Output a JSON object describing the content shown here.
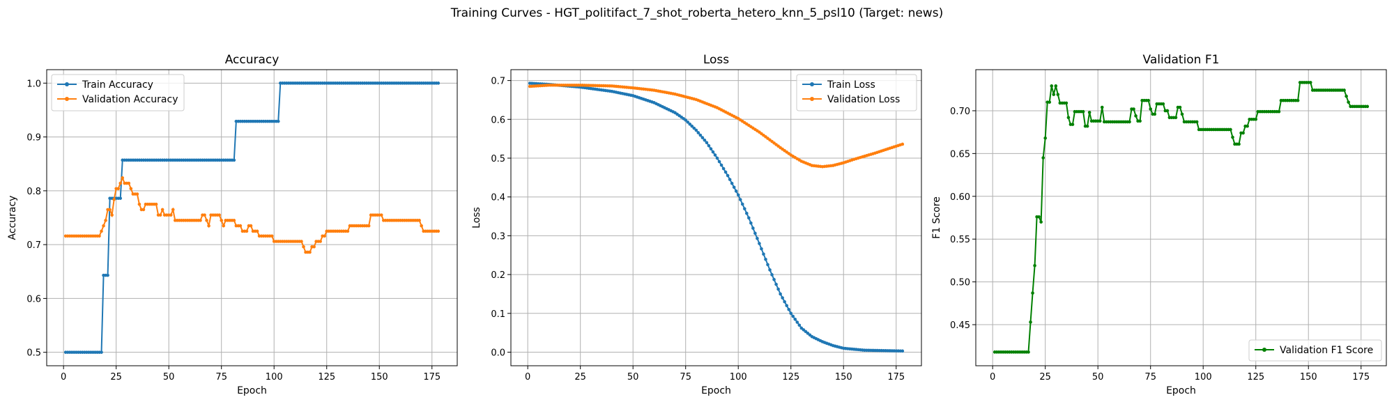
{
  "figure_title": "Training Curves - HGT_politifact_7_shot_roberta_hetero_knn_5_psl10 (Target: news)",
  "colors": {
    "blue": "#1f77b4",
    "orange": "#ff7f0e",
    "green": "#008000",
    "grid": "#b0b0b0"
  },
  "chart_data": [
    {
      "type": "line",
      "title": "Accuracy",
      "xlabel": "Epoch",
      "ylabel": "Accuracy",
      "xlim": [
        -8,
        187
      ],
      "ylim": [
        0.475,
        1.025
      ],
      "xticks": [
        0,
        25,
        50,
        75,
        100,
        125,
        150,
        175
      ],
      "yticks": [
        0.5,
        0.6,
        0.7,
        0.8,
        0.9,
        1.0
      ],
      "ytick_labels": [
        "0.5",
        "0.6",
        "0.7",
        "0.8",
        "0.9",
        "1.0"
      ],
      "grid": true,
      "legend": "upper-left",
      "x_range": [
        1,
        178
      ],
      "series": [
        {
          "name": "Train Accuracy",
          "color": "#1f77b4",
          "steps": [
            [
              1,
              0.5
            ],
            [
              19,
              0.643
            ],
            [
              22,
              0.786
            ],
            [
              28,
              0.857
            ],
            [
              82,
              0.929
            ],
            [
              103,
              1.0
            ]
          ]
        },
        {
          "name": "Validation Accuracy",
          "color": "#ff7f0e",
          "steps": [
            [
              1,
              0.716
            ],
            [
              18,
              0.725
            ],
            [
              19,
              0.735
            ],
            [
              20,
              0.745
            ],
            [
              21,
              0.765
            ],
            [
              23,
              0.755
            ],
            [
              24,
              0.784
            ],
            [
              25,
              0.804
            ],
            [
              27,
              0.814
            ],
            [
              28,
              0.824
            ],
            [
              29,
              0.814
            ],
            [
              32,
              0.804
            ],
            [
              33,
              0.794
            ],
            [
              36,
              0.775
            ],
            [
              37,
              0.765
            ],
            [
              39,
              0.775
            ],
            [
              45,
              0.755
            ],
            [
              47,
              0.765
            ],
            [
              48,
              0.755
            ],
            [
              52,
              0.765
            ],
            [
              53,
              0.745
            ],
            [
              66,
              0.755
            ],
            [
              68,
              0.745
            ],
            [
              69,
              0.735
            ],
            [
              70,
              0.755
            ],
            [
              75,
              0.745
            ],
            [
              76,
              0.735
            ],
            [
              77,
              0.745
            ],
            [
              82,
              0.735
            ],
            [
              85,
              0.725
            ],
            [
              88,
              0.735
            ],
            [
              90,
              0.725
            ],
            [
              93,
              0.716
            ],
            [
              100,
              0.706
            ],
            [
              114,
              0.696
            ],
            [
              115,
              0.686
            ],
            [
              118,
              0.696
            ],
            [
              120,
              0.706
            ],
            [
              123,
              0.716
            ],
            [
              125,
              0.725
            ],
            [
              136,
              0.735
            ],
            [
              146,
              0.755
            ],
            [
              152,
              0.745
            ],
            [
              170,
              0.735
            ],
            [
              171,
              0.725
            ]
          ]
        }
      ]
    },
    {
      "type": "line",
      "title": "Loss",
      "xlabel": "Epoch",
      "ylabel": "Loss",
      "xlim": [
        -8,
        187
      ],
      "ylim": [
        -0.035,
        0.728
      ],
      "xticks": [
        0,
        25,
        50,
        75,
        100,
        125,
        150,
        175
      ],
      "yticks": [
        0.0,
        0.1,
        0.2,
        0.3,
        0.4,
        0.5,
        0.6,
        0.7
      ],
      "ytick_labels": [
        "0.0",
        "0.1",
        "0.2",
        "0.3",
        "0.4",
        "0.5",
        "0.6",
        "0.7"
      ],
      "grid": true,
      "legend": "upper-right",
      "x_range": [
        1,
        178
      ],
      "series": [
        {
          "name": "Train Loss",
          "color": "#1f77b4",
          "knots": [
            [
              1,
              0.693
            ],
            [
              10,
              0.69
            ],
            [
              25,
              0.683
            ],
            [
              40,
              0.672
            ],
            [
              50,
              0.661
            ],
            [
              60,
              0.643
            ],
            [
              70,
              0.617
            ],
            [
              75,
              0.598
            ],
            [
              80,
              0.572
            ],
            [
              85,
              0.54
            ],
            [
              90,
              0.5
            ],
            [
              95,
              0.455
            ],
            [
              100,
              0.405
            ],
            [
              105,
              0.346
            ],
            [
              110,
              0.28
            ],
            [
              115,
              0.212
            ],
            [
              120,
              0.15
            ],
            [
              125,
              0.1
            ],
            [
              130,
              0.062
            ],
            [
              135,
              0.04
            ],
            [
              140,
              0.027
            ],
            [
              145,
              0.017
            ],
            [
              150,
              0.01
            ],
            [
              160,
              0.005
            ],
            [
              178,
              0.003
            ]
          ]
        },
        {
          "name": "Validation Loss",
          "color": "#ff7f0e",
          "knots": [
            [
              1,
              0.685
            ],
            [
              10,
              0.688
            ],
            [
              25,
              0.688
            ],
            [
              40,
              0.686
            ],
            [
              50,
              0.681
            ],
            [
              60,
              0.675
            ],
            [
              70,
              0.665
            ],
            [
              80,
              0.651
            ],
            [
              90,
              0.63
            ],
            [
              100,
              0.602
            ],
            [
              110,
              0.567
            ],
            [
              120,
              0.527
            ],
            [
              125,
              0.508
            ],
            [
              130,
              0.492
            ],
            [
              135,
              0.481
            ],
            [
              140,
              0.478
            ],
            [
              145,
              0.481
            ],
            [
              150,
              0.488
            ],
            [
              155,
              0.497
            ],
            [
              160,
              0.505
            ],
            [
              165,
              0.513
            ],
            [
              170,
              0.522
            ],
            [
              178,
              0.536
            ]
          ]
        }
      ]
    },
    {
      "type": "line",
      "title": "Validation F1",
      "xlabel": "Epoch",
      "ylabel": "F1 Score",
      "xlim": [
        -8,
        187
      ],
      "ylim": [
        0.402,
        0.748
      ],
      "xticks": [
        0,
        25,
        50,
        75,
        100,
        125,
        150,
        175
      ],
      "yticks": [
        0.45,
        0.5,
        0.55,
        0.6,
        0.65,
        0.7
      ],
      "ytick_labels": [
        "0.45",
        "0.50",
        "0.55",
        "0.60",
        "0.65",
        "0.70"
      ],
      "grid": true,
      "legend": "lower-right",
      "x_range": [
        1,
        178
      ],
      "series": [
        {
          "name": "Validation F1 Score",
          "color": "#008000",
          "steps": [
            [
              1,
              0.418
            ],
            [
              18,
              0.453
            ],
            [
              19,
              0.487
            ],
            [
              20,
              0.519
            ],
            [
              21,
              0.576
            ],
            [
              23,
              0.57
            ],
            [
              24,
              0.645
            ],
            [
              25,
              0.668
            ],
            [
              26,
              0.71
            ],
            [
              28,
              0.729
            ],
            [
              29,
              0.719
            ],
            [
              30,
              0.729
            ],
            [
              31,
              0.719
            ],
            [
              32,
              0.709
            ],
            [
              36,
              0.692
            ],
            [
              37,
              0.684
            ],
            [
              39,
              0.699
            ],
            [
              44,
              0.682
            ],
            [
              46,
              0.698
            ],
            [
              47,
              0.688
            ],
            [
              52,
              0.704
            ],
            [
              53,
              0.687
            ],
            [
              66,
              0.702
            ],
            [
              68,
              0.694
            ],
            [
              69,
              0.688
            ],
            [
              71,
              0.712
            ],
            [
              75,
              0.702
            ],
            [
              76,
              0.696
            ],
            [
              78,
              0.708
            ],
            [
              82,
              0.7
            ],
            [
              84,
              0.692
            ],
            [
              88,
              0.704
            ],
            [
              90,
              0.696
            ],
            [
              91,
              0.687
            ],
            [
              98,
              0.678
            ],
            [
              114,
              0.669
            ],
            [
              115,
              0.661
            ],
            [
              118,
              0.674
            ],
            [
              120,
              0.682
            ],
            [
              122,
              0.69
            ],
            [
              126,
              0.699
            ],
            [
              137,
              0.712
            ],
            [
              146,
              0.733
            ],
            [
              152,
              0.724
            ],
            [
              168,
              0.717
            ],
            [
              169,
              0.71
            ],
            [
              170,
              0.705
            ]
          ]
        }
      ]
    }
  ]
}
